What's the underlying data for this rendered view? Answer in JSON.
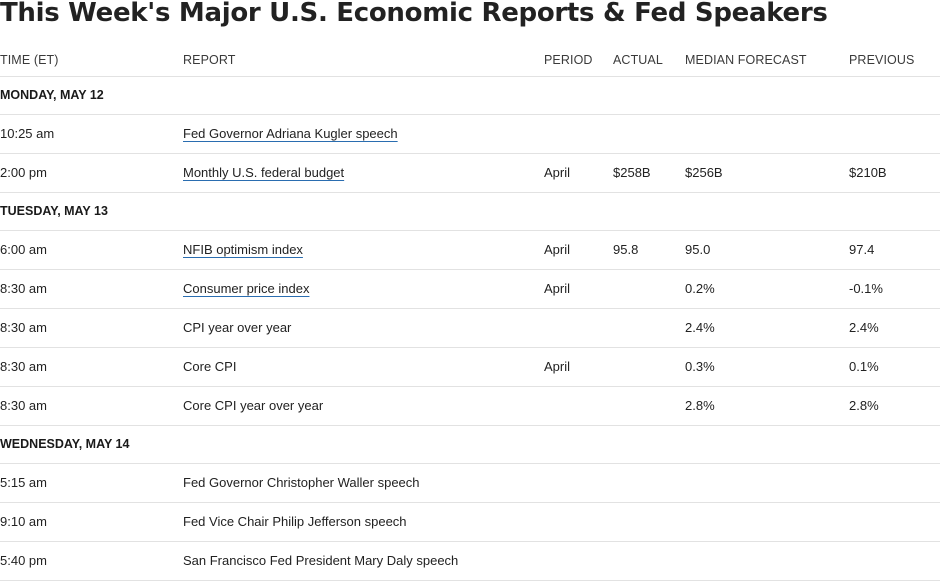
{
  "title": "This Week's Major U.S. Economic Reports & Fed Speakers",
  "columns": {
    "time": "TIME (ET)",
    "report": "REPORT",
    "period": "PERIOD",
    "actual": "ACTUAL",
    "median": "MEDIAN FORECAST",
    "previous": "PREVIOUS"
  },
  "rows": [
    {
      "kind": "day",
      "label": "MONDAY, MAY 12"
    },
    {
      "kind": "entry",
      "time": "10:25 am",
      "report": "Fed Governor Adriana Kugler speech",
      "link": true,
      "period": "",
      "actual": "",
      "median": "",
      "previous": ""
    },
    {
      "kind": "entry",
      "time": "2:00 pm",
      "report": "Monthly U.S. federal budget",
      "link": true,
      "period": "April",
      "actual": "$258B",
      "median": "$256B",
      "previous": "$210B"
    },
    {
      "kind": "day",
      "label": "TUESDAY, MAY 13"
    },
    {
      "kind": "entry",
      "time": "6:00 am",
      "report": "NFIB optimism index",
      "link": true,
      "period": "April",
      "actual": "95.8",
      "median": "95.0",
      "previous": "97.4"
    },
    {
      "kind": "entry",
      "time": "8:30 am",
      "report": "Consumer price index",
      "link": true,
      "period": "April",
      "actual": "",
      "median": "0.2%",
      "previous": "-0.1%"
    },
    {
      "kind": "entry",
      "time": "8:30 am",
      "report": "CPI year over year",
      "link": false,
      "period": "",
      "actual": "",
      "median": "2.4%",
      "previous": "2.4%"
    },
    {
      "kind": "entry",
      "time": "8:30 am",
      "report": "Core CPI",
      "link": false,
      "period": "April",
      "actual": "",
      "median": "0.3%",
      "previous": "0.1%"
    },
    {
      "kind": "entry",
      "time": "8:30 am",
      "report": "Core CPI year over year",
      "link": false,
      "period": "",
      "actual": "",
      "median": "2.8%",
      "previous": "2.8%"
    },
    {
      "kind": "day",
      "label": "WEDNESDAY, MAY 14"
    },
    {
      "kind": "entry",
      "time": "5:15 am",
      "report": "Fed Governor Christopher Waller speech",
      "link": false,
      "period": "",
      "actual": "",
      "median": "",
      "previous": ""
    },
    {
      "kind": "entry",
      "time": "9:10 am",
      "report": "Fed Vice Chair Philip Jefferson speech",
      "link": false,
      "period": "",
      "actual": "",
      "median": "",
      "previous": ""
    },
    {
      "kind": "entry",
      "time": "5:40 pm",
      "report": "San Francisco Fed President Mary Daly speech",
      "link": false,
      "period": "",
      "actual": "",
      "median": "",
      "previous": ""
    }
  ]
}
